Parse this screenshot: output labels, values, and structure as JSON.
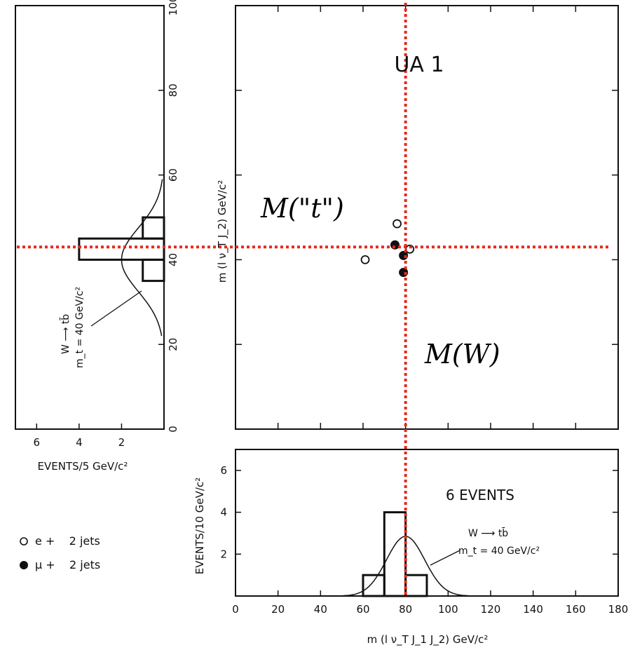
{
  "chart_data": [
    {
      "id": "scatter",
      "type": "scatter",
      "title": "UA 1",
      "xlim": [
        0,
        180
      ],
      "ylim": [
        0,
        100
      ],
      "points": [
        {
          "x": 61,
          "y": 40,
          "lepton": "e"
        },
        {
          "x": 76,
          "y": 48.5,
          "lepton": "e"
        },
        {
          "x": 82,
          "y": 42.5,
          "lepton": "e"
        },
        {
          "x": 75,
          "y": 43.5,
          "lepton": "mu"
        },
        {
          "x": 79,
          "y": 41,
          "lepton": "mu"
        },
        {
          "x": 79,
          "y": 37,
          "lepton": "mu"
        }
      ],
      "reference_lines": [
        {
          "axis": "x",
          "value": 80,
          "label": "M(W)",
          "color": "#e8281c"
        },
        {
          "axis": "y",
          "value": 43,
          "label": "M(\"t\")",
          "color": "#e8281c"
        }
      ]
    },
    {
      "id": "x_projection",
      "type": "histogram",
      "xlabel": "m (l ν_T J_1 J_2) GeV/c²",
      "ylabel": "EVENTS/10 GeV/c²",
      "xlim": [
        0,
        180
      ],
      "ylim": [
        0,
        7
      ],
      "x_ticks": [
        0,
        20,
        40,
        60,
        80,
        100,
        120,
        140,
        160,
        180
      ],
      "y_ticks": [
        2,
        4,
        6
      ],
      "bins": [
        {
          "from": 60,
          "to": 70,
          "count": 1
        },
        {
          "from": 70,
          "to": 80,
          "count": 4
        },
        {
          "from": 80,
          "to": 90,
          "count": 1
        }
      ],
      "curve": {
        "center": 80,
        "sigma": 9,
        "peak": 2.85
      },
      "annotation": "6 EVENTS",
      "model_line_1": "W ⟶ tb̄",
      "model_line_2": "m_t = 40 GeV/c²"
    },
    {
      "id": "y_projection",
      "type": "histogram",
      "orientation": "horizontal",
      "xlabel": "EVENTS/5 GeV/c²",
      "ylabel": "m (l ν_T J_2) GeV/c²",
      "xlim": [
        7,
        0
      ],
      "ylim": [
        0,
        100
      ],
      "x_ticks": [
        6,
        4,
        2
      ],
      "y_ticks": [
        0,
        20,
        40,
        60,
        80,
        100
      ],
      "bins": [
        {
          "from": 35,
          "to": 40,
          "count": 1
        },
        {
          "from": 40,
          "to": 45,
          "count": 4
        },
        {
          "from": 45,
          "to": 50,
          "count": 1
        }
      ],
      "curve": {
        "center": 40,
        "sigma": 7.5,
        "peak": 2.0
      },
      "model_line_1": "W ⟶ tb̄",
      "model_line_2": "m_t = 40 GeV/c²"
    }
  ],
  "legend": [
    {
      "marker": "open-circle",
      "label": "e +    2 jets"
    },
    {
      "marker": "filled-circle",
      "label": "μ +    2 jets"
    }
  ],
  "overlays": {
    "mt_label": "M(\"t\")",
    "mw_label": "M(W)"
  },
  "colors": {
    "reference_line": "#e8281c",
    "ink": "#111111"
  }
}
